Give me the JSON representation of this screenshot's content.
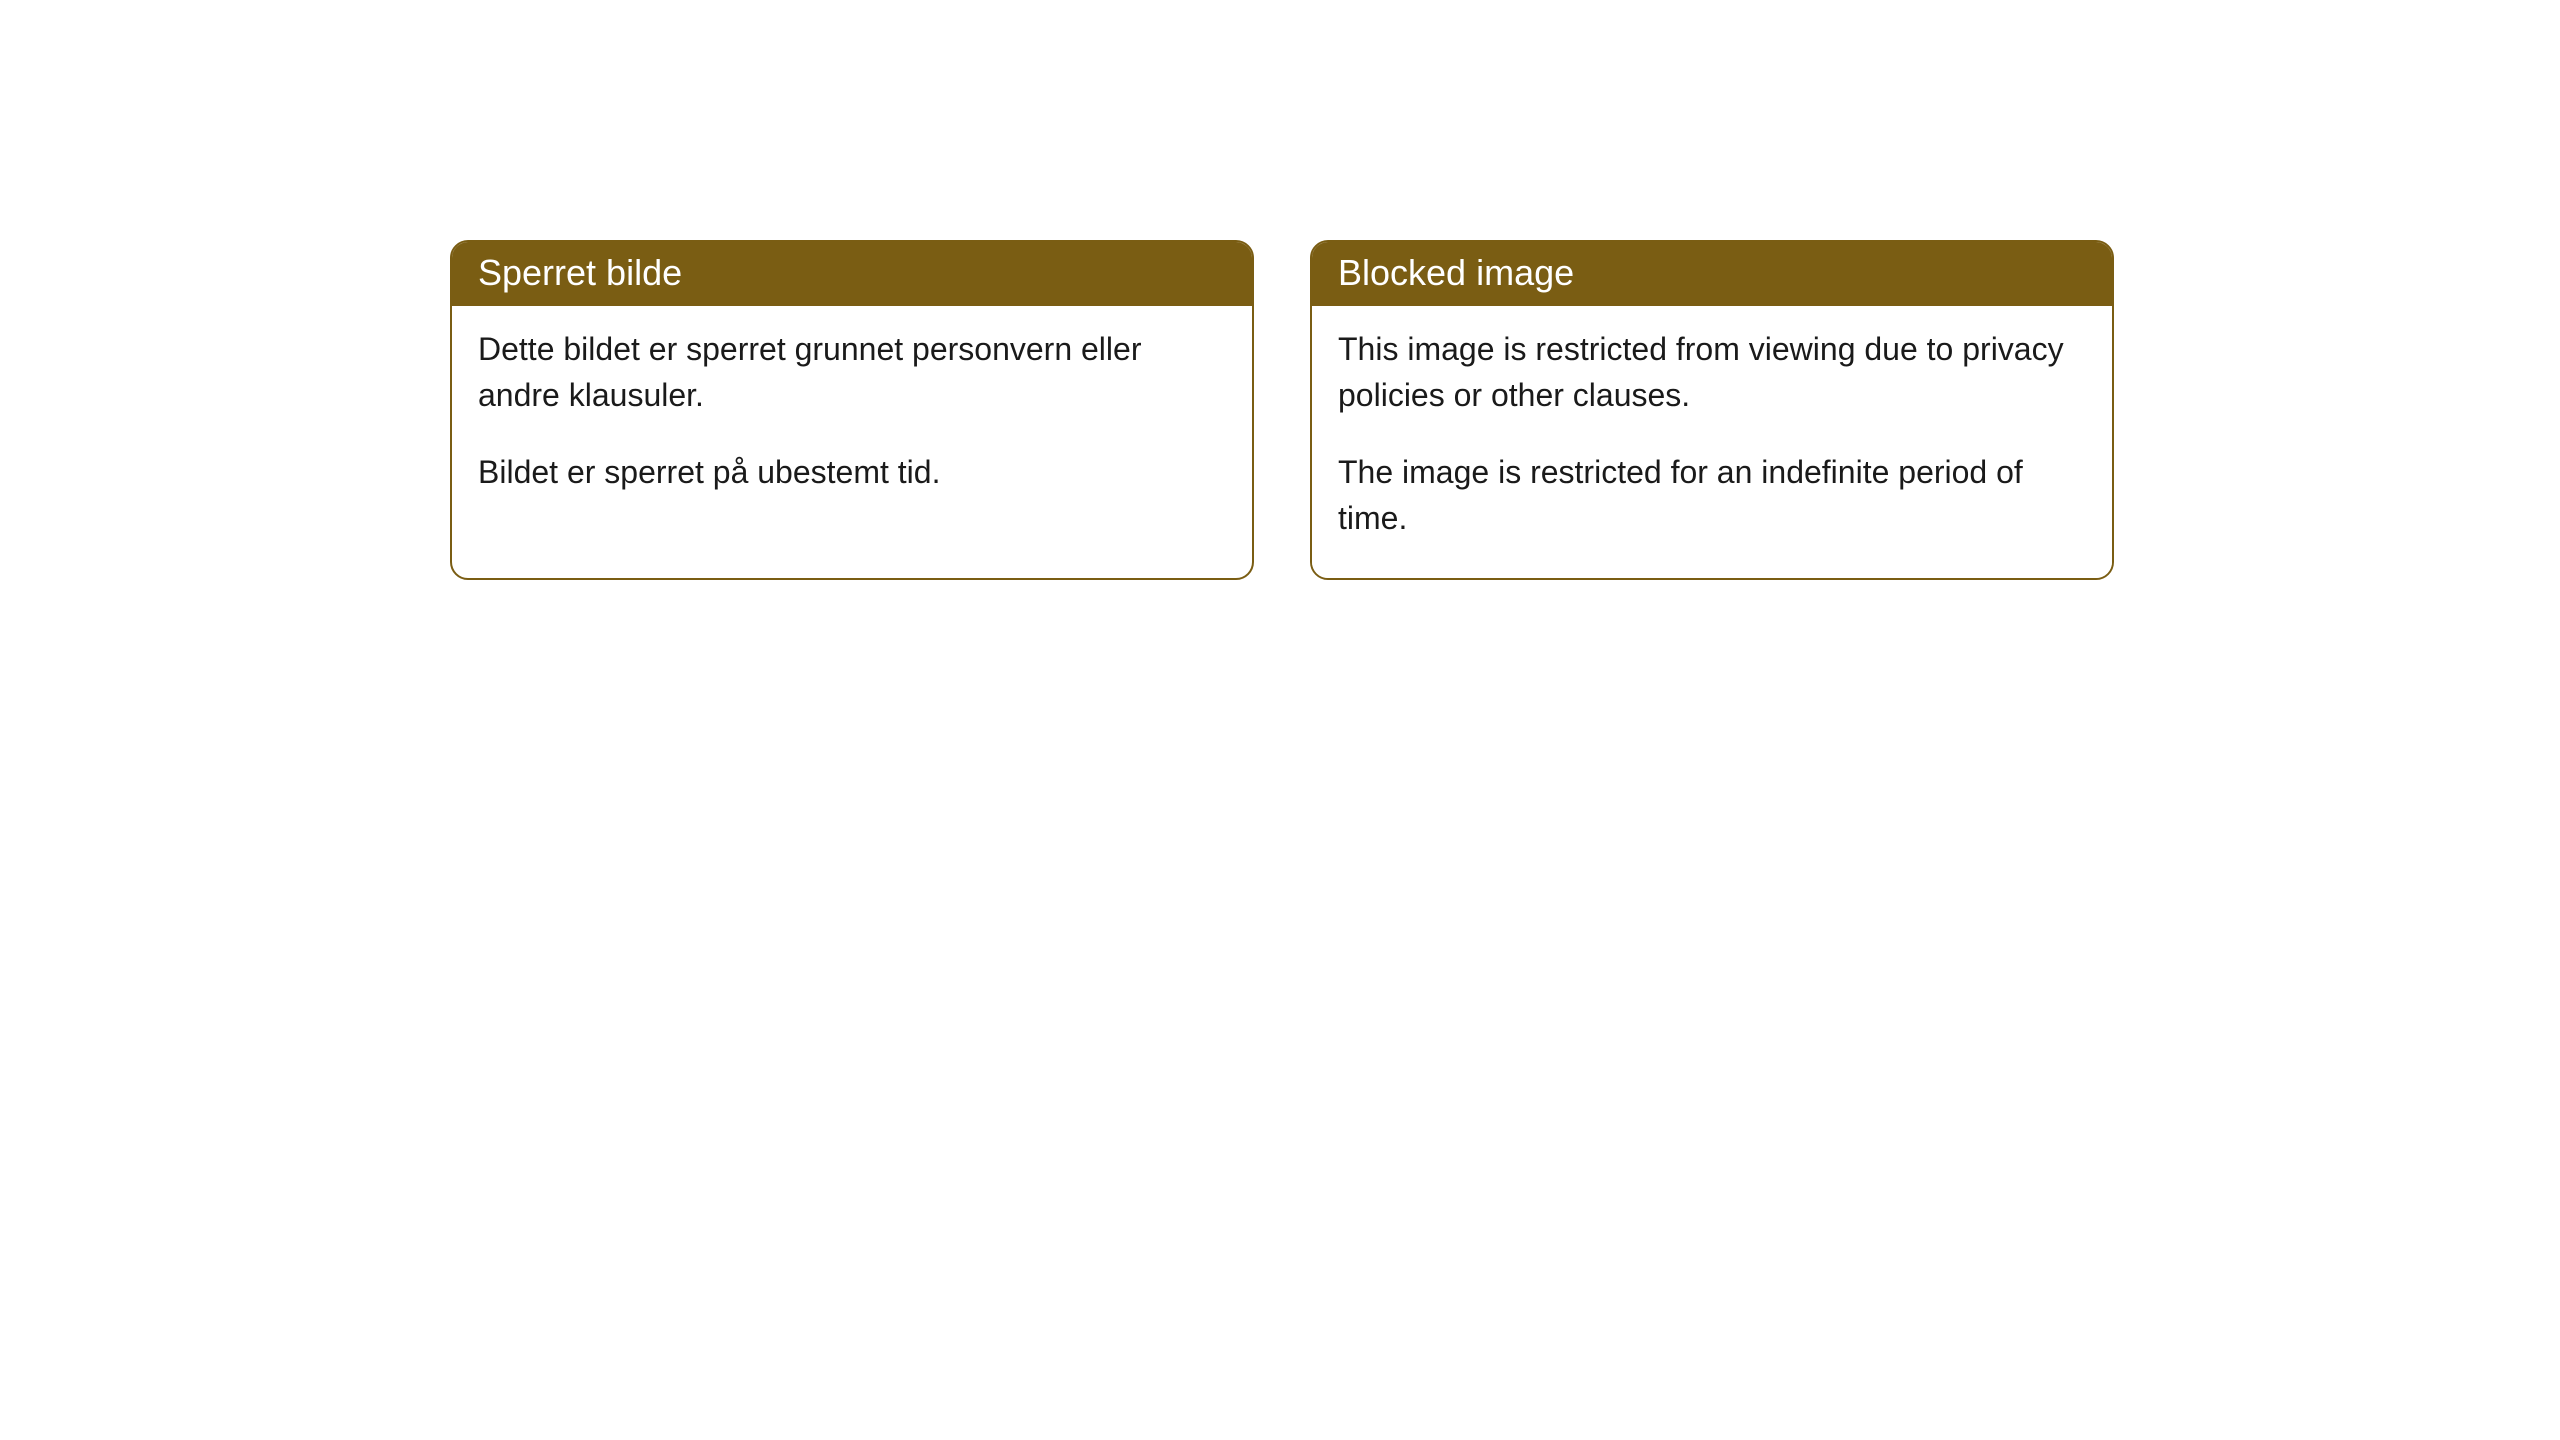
{
  "notices": {
    "norwegian": {
      "title": "Sperret bilde",
      "para1": "Dette bildet er sperret grunnet personvern eller andre klausuler.",
      "para2": "Bildet er sperret på ubestemt tid."
    },
    "english": {
      "title": "Blocked image",
      "para1": "This image is restricted from viewing due to privacy policies or other clauses.",
      "para2": "The image is restricted for an indefinite period of time."
    }
  },
  "styling": {
    "header_bg": "#7a5d13",
    "header_text_color": "#ffffff",
    "border_color": "#7a5d13",
    "body_bg": "#ffffff",
    "body_text_color": "#1a1a1a",
    "border_radius": 18,
    "title_fontsize": 36,
    "body_fontsize": 32
  }
}
